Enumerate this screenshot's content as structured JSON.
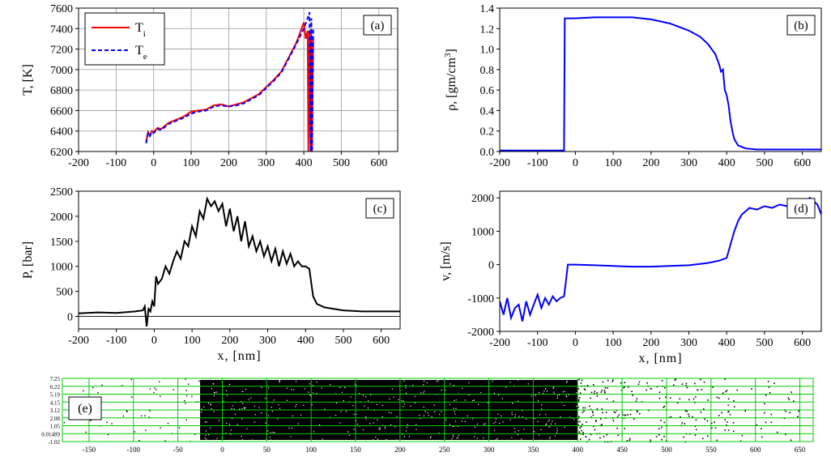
{
  "chart_data": [
    {
      "id": "a",
      "type": "line",
      "panel_label": "(a)",
      "xlabel": "",
      "ylabel": "T, [K]",
      "xlim": [
        -200,
        650
      ],
      "ylim": [
        6200,
        7600
      ],
      "xticks": [
        -200,
        -100,
        0,
        100,
        200,
        300,
        400,
        500,
        600
      ],
      "yticks": [
        6200,
        6400,
        6600,
        6800,
        7000,
        7200,
        7400,
        7600
      ],
      "grid": true,
      "legend": "top-left",
      "series": [
        {
          "name": "T_i",
          "legend_main": "T",
          "legend_sub": "i",
          "color": "#ff0000",
          "style": "solid",
          "x": [
            -20,
            -15,
            -10,
            -5,
            0,
            10,
            20,
            40,
            60,
            80,
            100,
            120,
            140,
            160,
            180,
            200,
            220,
            240,
            260,
            280,
            300,
            320,
            340,
            360,
            380,
            400,
            405,
            410,
            412,
            415,
            418,
            420,
            422,
            425
          ],
          "y": [
            6300,
            6390,
            6360,
            6400,
            6390,
            6430,
            6420,
            6480,
            6510,
            6540,
            6590,
            6600,
            6610,
            6650,
            6660,
            6640,
            6660,
            6680,
            6720,
            6760,
            6830,
            6900,
            6980,
            7120,
            7260,
            7460,
            7300,
            7380,
            6200,
            7380,
            6200,
            7350,
            6200,
            7300
          ]
        },
        {
          "name": "T_e",
          "legend_main": "T",
          "legend_sub": "e",
          "color": "#0000ff",
          "style": "dashed",
          "x": [
            -20,
            -15,
            -10,
            -5,
            0,
            10,
            20,
            40,
            60,
            80,
            100,
            120,
            140,
            160,
            180,
            200,
            220,
            240,
            260,
            280,
            300,
            320,
            340,
            360,
            380,
            400,
            410,
            415,
            418,
            420,
            422,
            425
          ],
          "y": [
            6280,
            6380,
            6350,
            6390,
            6380,
            6420,
            6410,
            6470,
            6500,
            6530,
            6570,
            6590,
            6600,
            6640,
            6650,
            6640,
            6650,
            6670,
            6710,
            6750,
            6820,
            6890,
            6970,
            7110,
            7250,
            7400,
            7500,
            7560,
            6200,
            7500,
            6200,
            7400
          ]
        }
      ]
    },
    {
      "id": "b",
      "type": "line",
      "panel_label": "(b)",
      "xlabel": "",
      "ylabel": "ρ, [gm/cm³]",
      "ylabel_main": "ρ, [gm/cm",
      "ylabel_sup": "3",
      "ylabel_end": "]",
      "xlim": [
        -200,
        650
      ],
      "ylim": [
        0.0,
        1.4
      ],
      "xticks": [
        -200,
        -100,
        0,
        100,
        200,
        300,
        400,
        500,
        600
      ],
      "yticks": [
        0.0,
        0.2,
        0.4,
        0.6,
        0.8,
        1.0,
        1.2,
        1.4
      ],
      "grid": false,
      "series": [
        {
          "name": "",
          "color": "#0000ff",
          "x": [
            -200,
            -100,
            -30,
            -28,
            -25,
            0,
            50,
            100,
            150,
            200,
            250,
            300,
            330,
            350,
            370,
            380,
            385,
            390,
            395,
            400,
            405,
            410,
            415,
            420,
            430,
            450,
            480,
            500,
            550,
            600,
            650
          ],
          "y": [
            0.01,
            0.01,
            0.01,
            1.3,
            1.3,
            1.3,
            1.31,
            1.31,
            1.31,
            1.29,
            1.25,
            1.18,
            1.12,
            1.05,
            0.95,
            0.85,
            0.78,
            0.8,
            0.6,
            0.55,
            0.45,
            0.3,
            0.2,
            0.12,
            0.06,
            0.03,
            0.02,
            0.02,
            0.02,
            0.02,
            0.02
          ]
        }
      ]
    },
    {
      "id": "c",
      "type": "line",
      "panel_label": "(c)",
      "xlabel": "x, [nm]",
      "ylabel": "P, [bar]",
      "xlim": [
        -200,
        650
      ],
      "ylim": [
        -250,
        2500
      ],
      "xticks": [
        -200,
        -100,
        0,
        100,
        200,
        300,
        400,
        500,
        600
      ],
      "yticks": [
        0,
        500,
        1000,
        1500,
        2000,
        2500
      ],
      "grid": false,
      "series": [
        {
          "name": "",
          "color": "#000000",
          "x": [
            -200,
            -150,
            -100,
            -50,
            -30,
            -25,
            -20,
            -15,
            -10,
            -5,
            0,
            5,
            10,
            20,
            30,
            40,
            50,
            60,
            70,
            80,
            90,
            100,
            110,
            120,
            130,
            140,
            150,
            160,
            170,
            180,
            190,
            200,
            210,
            220,
            230,
            240,
            250,
            260,
            270,
            280,
            290,
            300,
            310,
            320,
            330,
            340,
            350,
            360,
            370,
            380,
            390,
            400,
            410,
            420,
            430,
            450,
            500,
            550,
            600,
            650
          ],
          "y": [
            60,
            80,
            70,
            100,
            120,
            200,
            -200,
            150,
            100,
            300,
            200,
            800,
            650,
            750,
            1000,
            850,
            1100,
            1300,
            1150,
            1500,
            1400,
            1800,
            1600,
            2100,
            1950,
            2350,
            2200,
            2300,
            2100,
            2250,
            1800,
            2150,
            1700,
            2000,
            1500,
            1900,
            1400,
            1600,
            1300,
            1500,
            1200,
            1400,
            1100,
            1350,
            1000,
            1300,
            1050,
            1250,
            1000,
            1100,
            1000,
            1000,
            950,
            400,
            250,
            180,
            120,
            100,
            100,
            100
          ]
        }
      ]
    },
    {
      "id": "d",
      "type": "line",
      "panel_label": "(d)",
      "xlabel": "x, [nm]",
      "ylabel": "v, [m/s]",
      "xlim": [
        -200,
        650
      ],
      "ylim": [
        -2000,
        2200
      ],
      "xticks": [
        -200,
        -100,
        0,
        100,
        200,
        300,
        400,
        500,
        600
      ],
      "yticks": [
        -2000,
        -1000,
        0,
        1000,
        2000
      ],
      "grid": false,
      "series": [
        {
          "name": "",
          "color": "#0000ff",
          "x": [
            -200,
            -190,
            -180,
            -170,
            -160,
            -150,
            -140,
            -130,
            -120,
            -110,
            -100,
            -90,
            -80,
            -70,
            -60,
            -50,
            -40,
            -30,
            -25,
            -20,
            0,
            50,
            100,
            150,
            200,
            250,
            300,
            350,
            380,
            400,
            410,
            420,
            430,
            440,
            450,
            460,
            480,
            500,
            520,
            540,
            560,
            580,
            600,
            620,
            640,
            650
          ],
          "y": [
            -1100,
            -1500,
            -1000,
            -1600,
            -1300,
            -1200,
            -1700,
            -1100,
            -1500,
            -1200,
            -900,
            -1300,
            -1000,
            -1200,
            -950,
            -1100,
            -1000,
            -950,
            -500,
            0,
            0,
            -20,
            -40,
            -60,
            -60,
            -40,
            -20,
            50,
            120,
            200,
            600,
            1000,
            1300,
            1500,
            1600,
            1700,
            1650,
            1750,
            1700,
            1800,
            1750,
            1900,
            1850,
            2000,
            1800,
            1500
          ]
        }
      ]
    },
    {
      "id": "e",
      "type": "scatter",
      "panel_label": "(e)",
      "xlabel": "",
      "ylabel": "",
      "xlim": [
        -180,
        665
      ],
      "xticks": [
        -150,
        -100,
        -50,
        0,
        50,
        100,
        150,
        200,
        250,
        300,
        350,
        400,
        450,
        500,
        550,
        600,
        650
      ],
      "ytick_labels": [
        "-1.02",
        "0.01489",
        "1.05",
        "2.08",
        "3.12",
        "4.15",
        "5.19",
        "6.22",
        "7.25"
      ],
      "ytick_values": [
        -1.02,
        0.01489,
        1.05,
        2.08,
        3.12,
        4.15,
        5.19,
        6.22,
        7.25
      ],
      "grid": true,
      "grid_color": "#00cc00",
      "point_color": "#000000",
      "dense_region": [
        -25,
        400
      ],
      "sparse_region": [
        400,
        650
      ]
    }
  ]
}
